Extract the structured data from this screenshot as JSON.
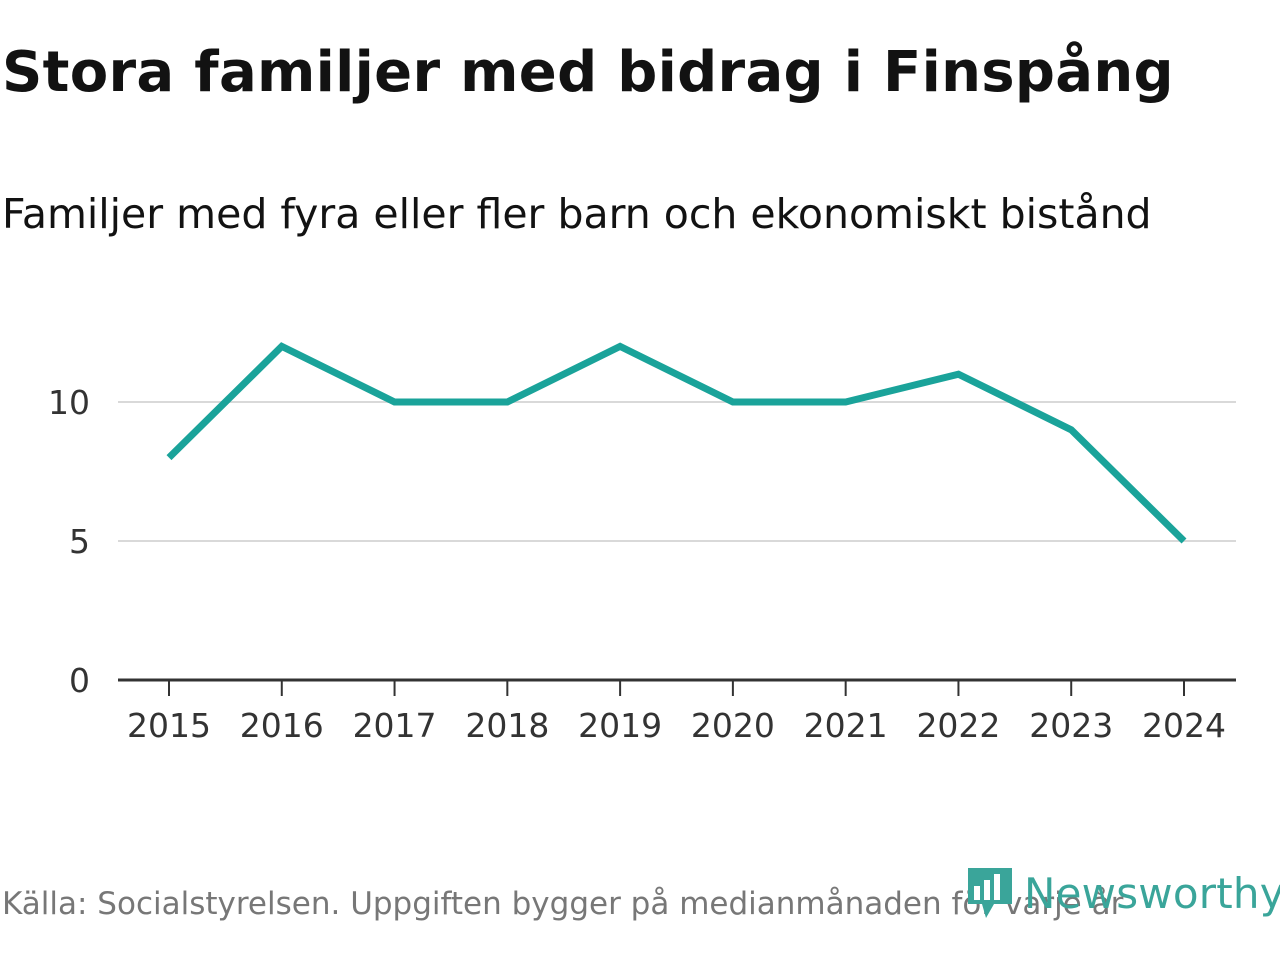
{
  "chart_data": {
    "type": "line",
    "title": "Stora familjer med bidrag i Finspång",
    "subtitle": "Familjer med fyra eller fler barn och ekonomiskt bistånd",
    "categories": [
      "2015",
      "2016",
      "2017",
      "2018",
      "2019",
      "2020",
      "2021",
      "2022",
      "2023",
      "2024"
    ],
    "series": [
      {
        "name": "Familjer",
        "values": [
          8,
          12,
          10,
          10,
          12,
          10,
          10,
          11,
          9,
          5
        ]
      }
    ],
    "yticks": [
      "0",
      "5",
      "10"
    ],
    "ylim": [
      0,
      12
    ],
    "xlabel": "",
    "ylabel": "",
    "grid": true,
    "line_color": "#1aa39a"
  },
  "footer": {
    "source": "Källa: Socialstyrelsen. Uppgiften bygger på medianmånaden för varje år",
    "brand": "Newsworthy",
    "brand_icon": "newsworthy-logo-icon"
  }
}
